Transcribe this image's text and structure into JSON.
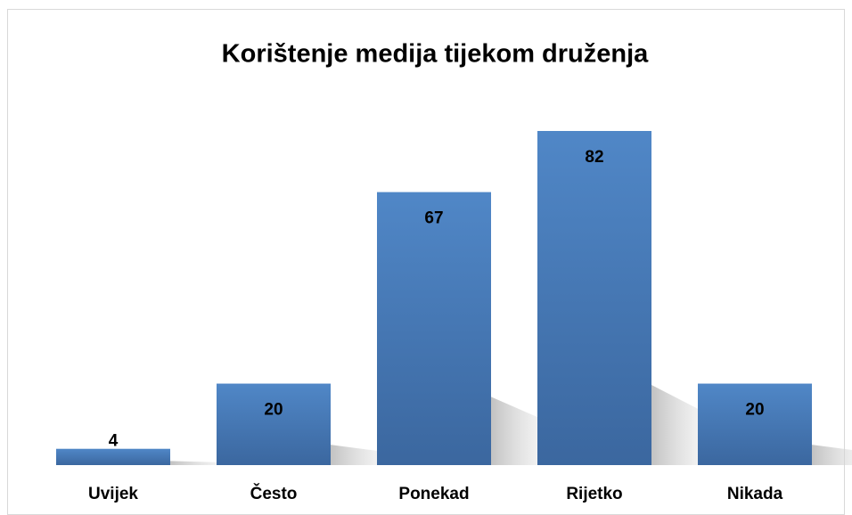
{
  "chart_data": {
    "type": "bar",
    "title": "Korištenje medija tijekom druženja",
    "categories": [
      "Uvijek",
      "Često",
      "Ponekad",
      "Rijetko",
      "Nikada"
    ],
    "values": [
      4,
      20,
      67,
      82,
      20
    ],
    "color": "#4a7ebb"
  }
}
